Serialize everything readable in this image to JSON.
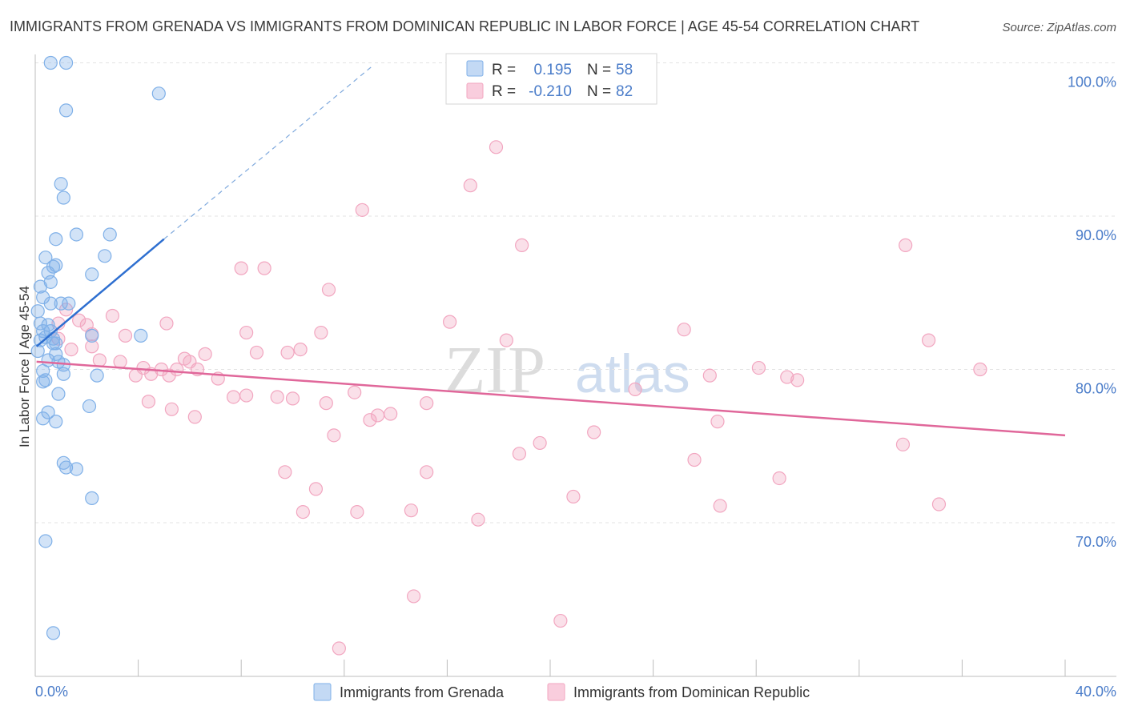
{
  "chart_data": {
    "type": "scatter",
    "title": "IMMIGRANTS FROM GRENADA VS IMMIGRANTS FROM DOMINICAN REPUBLIC IN LABOR FORCE | AGE 45-54 CORRELATION CHART",
    "source": "Source: ZipAtlas.com",
    "ylabel": "In Labor Force | Age 45-54",
    "xlim": [
      0,
      40
    ],
    "ylim": [
      60.5,
      101.5
    ],
    "yticks": [
      {
        "value": 70,
        "label": "70.0%"
      },
      {
        "value": 80,
        "label": "80.0%"
      },
      {
        "value": 90,
        "label": "90.0%"
      },
      {
        "value": 100,
        "label": "100.0%"
      }
    ],
    "xtick_labels": {
      "left": "0.0%",
      "right": "40.0%"
    },
    "watermark": {
      "zip": "ZIP",
      "atlas": "atlas"
    },
    "legend": {
      "r_label": "R =",
      "n_label": "N =",
      "entries": [
        {
          "r": "0.195",
          "n": "58"
        },
        {
          "r": "-0.210",
          "n": "82"
        }
      ]
    },
    "series": [
      {
        "name": "Immigrants from Grenada",
        "color": "#7fb0e8",
        "line_color": "#2e6fd0",
        "trend": {
          "x0": 0.05,
          "y0": 81.5,
          "x1": 5.0,
          "y1": 88.5,
          "dash_to_x": 13.1,
          "dash_to_y": 99.8
        },
        "points": [
          [
            0.6,
            100.0
          ],
          [
            1.2,
            100.0
          ],
          [
            4.8,
            98.0
          ],
          [
            1.2,
            96.9
          ],
          [
            1.0,
            92.1
          ],
          [
            1.1,
            91.2
          ],
          [
            1.6,
            88.8
          ],
          [
            2.9,
            88.8
          ],
          [
            0.8,
            88.5
          ],
          [
            2.7,
            87.4
          ],
          [
            0.4,
            87.3
          ],
          [
            0.8,
            86.8
          ],
          [
            0.7,
            86.7
          ],
          [
            2.2,
            86.2
          ],
          [
            0.5,
            86.3
          ],
          [
            0.6,
            85.7
          ],
          [
            0.2,
            85.4
          ],
          [
            0.3,
            84.7
          ],
          [
            0.6,
            84.3
          ],
          [
            1.0,
            84.3
          ],
          [
            1.3,
            84.3
          ],
          [
            0.1,
            83.8
          ],
          [
            0.2,
            83.0
          ],
          [
            0.5,
            82.9
          ],
          [
            0.3,
            82.5
          ],
          [
            0.6,
            82.5
          ],
          [
            0.4,
            82.1
          ],
          [
            0.7,
            82.0
          ],
          [
            2.2,
            82.2
          ],
          [
            4.1,
            82.2
          ],
          [
            0.2,
            81.9
          ],
          [
            0.7,
            81.7
          ],
          [
            0.8,
            81.7
          ],
          [
            0.1,
            81.2
          ],
          [
            0.8,
            81.0
          ],
          [
            0.5,
            80.6
          ],
          [
            0.9,
            80.5
          ],
          [
            1.1,
            80.3
          ],
          [
            0.3,
            79.9
          ],
          [
            1.1,
            79.7
          ],
          [
            2.4,
            79.6
          ],
          [
            0.4,
            79.3
          ],
          [
            0.3,
            79.2
          ],
          [
            0.9,
            78.4
          ],
          [
            2.1,
            77.6
          ],
          [
            0.5,
            77.2
          ],
          [
            0.3,
            76.8
          ],
          [
            0.8,
            76.6
          ],
          [
            1.1,
            73.9
          ],
          [
            1.2,
            73.6
          ],
          [
            1.6,
            73.5
          ],
          [
            2.2,
            71.6
          ],
          [
            0.4,
            68.8
          ],
          [
            0.7,
            62.8
          ]
        ]
      },
      {
        "name": "Immigrants from Dominican Republic",
        "color": "#f2a6c0",
        "line_color": "#e0679a",
        "trend": {
          "x0": 0.05,
          "y0": 80.5,
          "x1": 40.0,
          "y1": 75.7
        },
        "points": [
          [
            17.9,
            94.5
          ],
          [
            16.9,
            92.0
          ],
          [
            12.7,
            90.4
          ],
          [
            18.9,
            88.1
          ],
          [
            33.8,
            88.1
          ],
          [
            8.0,
            86.6
          ],
          [
            8.9,
            86.6
          ],
          [
            11.4,
            85.2
          ],
          [
            1.2,
            83.9
          ],
          [
            3.0,
            83.5
          ],
          [
            1.7,
            83.2
          ],
          [
            2.0,
            82.9
          ],
          [
            0.9,
            83.0
          ],
          [
            16.1,
            83.1
          ],
          [
            5.1,
            83.0
          ],
          [
            25.2,
            82.6
          ],
          [
            8.2,
            82.4
          ],
          [
            11.1,
            82.4
          ],
          [
            3.5,
            82.2
          ],
          [
            2.2,
            82.3
          ],
          [
            0.9,
            82.0
          ],
          [
            18.3,
            81.9
          ],
          [
            34.7,
            81.9
          ],
          [
            2.2,
            81.5
          ],
          [
            1.4,
            81.3
          ],
          [
            10.3,
            81.3
          ],
          [
            9.8,
            81.1
          ],
          [
            8.6,
            81.1
          ],
          [
            6.6,
            81.0
          ],
          [
            5.8,
            80.7
          ],
          [
            6.0,
            80.5
          ],
          [
            3.3,
            80.5
          ],
          [
            2.5,
            80.6
          ],
          [
            4.2,
            80.1
          ],
          [
            4.9,
            80.0
          ],
          [
            5.5,
            80.0
          ],
          [
            6.3,
            80.0
          ],
          [
            3.9,
            79.6
          ],
          [
            4.5,
            79.7
          ],
          [
            5.2,
            79.6
          ],
          [
            7.1,
            79.4
          ],
          [
            26.2,
            79.6
          ],
          [
            28.1,
            80.1
          ],
          [
            29.2,
            79.5
          ],
          [
            29.6,
            79.3
          ],
          [
            36.7,
            80.0
          ],
          [
            23.3,
            78.7
          ],
          [
            7.7,
            78.2
          ],
          [
            8.2,
            78.3
          ],
          [
            9.4,
            78.2
          ],
          [
            10.0,
            78.1
          ],
          [
            12.4,
            78.5
          ],
          [
            4.4,
            77.9
          ],
          [
            11.3,
            77.8
          ],
          [
            15.2,
            77.8
          ],
          [
            5.3,
            77.4
          ],
          [
            6.2,
            76.9
          ],
          [
            13.0,
            76.7
          ],
          [
            13.3,
            77.0
          ],
          [
            13.8,
            77.1
          ],
          [
            26.5,
            76.6
          ],
          [
            21.7,
            75.9
          ],
          [
            11.6,
            75.7
          ],
          [
            19.6,
            75.2
          ],
          [
            18.8,
            74.5
          ],
          [
            25.6,
            74.1
          ],
          [
            33.7,
            75.1
          ],
          [
            9.7,
            73.3
          ],
          [
            15.2,
            73.3
          ],
          [
            10.9,
            72.2
          ],
          [
            28.9,
            72.9
          ],
          [
            20.9,
            71.7
          ],
          [
            10.4,
            70.7
          ],
          [
            12.5,
            70.7
          ],
          [
            14.6,
            70.8
          ],
          [
            17.2,
            70.2
          ],
          [
            26.6,
            71.1
          ],
          [
            35.1,
            71.2
          ],
          [
            14.7,
            65.2
          ],
          [
            20.4,
            63.6
          ],
          [
            11.8,
            61.8
          ]
        ]
      }
    ]
  }
}
